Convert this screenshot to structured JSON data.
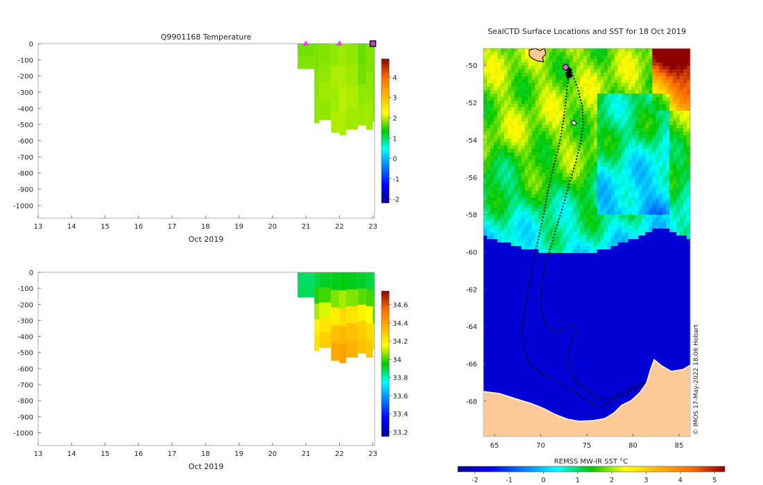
{
  "chart_data": [
    {
      "type": "heatmap",
      "title": "Q9901168  Temperature",
      "xlabel": "Oct 2019",
      "x_ticks": [
        13,
        14,
        15,
        16,
        17,
        18,
        19,
        20,
        21,
        22,
        23
      ],
      "xlim": [
        13,
        23.05
      ],
      "y_ticks": [
        0,
        -100,
        -200,
        -300,
        -400,
        -500,
        -600,
        -700,
        -800,
        -900,
        -1000
      ],
      "ylim": [
        -1080,
        0
      ],
      "colorbar": {
        "ticks": [
          -2,
          -1,
          0,
          1,
          2,
          3,
          4
        ],
        "range": [
          -2.2,
          4.9
        ]
      },
      "profile_markers": [
        21,
        22
      ],
      "latest_marker": 23,
      "columns": [
        {
          "x0": 20.75,
          "x1": 21.25,
          "depth": 155,
          "values": [
            1.75,
            1.8
          ]
        },
        {
          "x0": 21.25,
          "x1": 21.4,
          "depth": 490,
          "values": [
            1.78,
            1.82,
            1.85
          ]
        },
        {
          "x0": 21.4,
          "x1": 21.75,
          "depth": 470,
          "values": [
            1.8,
            1.85,
            1.9,
            1.85
          ]
        },
        {
          "x0": 21.75,
          "x1": 22.0,
          "depth": 550,
          "values": [
            1.85,
            1.95,
            1.9,
            1.95
          ]
        },
        {
          "x0": 22.0,
          "x1": 22.2,
          "depth": 565,
          "values": [
            1.9,
            1.95,
            2.0,
            1.95
          ]
        },
        {
          "x0": 22.2,
          "x1": 22.55,
          "depth": 530,
          "values": [
            1.85,
            1.9,
            1.95,
            1.9
          ]
        },
        {
          "x0": 22.55,
          "x1": 22.8,
          "depth": 505,
          "values": [
            1.7,
            1.75,
            1.85,
            1.9
          ]
        },
        {
          "x0": 22.8,
          "x1": 23.0,
          "depth": 530,
          "values": [
            1.8,
            1.85,
            1.9
          ]
        },
        {
          "x0": 23.0,
          "x1": 23.05,
          "depth": 480,
          "values": [
            1.75,
            1.8
          ]
        }
      ]
    },
    {
      "type": "heatmap",
      "title": "",
      "xlabel": "Oct 2019",
      "x_ticks": [
        13,
        14,
        15,
        16,
        17,
        18,
        19,
        20,
        21,
        22,
        23
      ],
      "xlim": [
        13,
        23.05
      ],
      "y_ticks": [
        0,
        -100,
        -200,
        -300,
        -400,
        -500,
        -600,
        -700,
        -800,
        -900,
        -1000
      ],
      "ylim": [
        -1080,
        0
      ],
      "colorbar": {
        "ticks": [
          33.2,
          33.4,
          33.6,
          33.8,
          34,
          34.2,
          34.4,
          34.6
        ],
        "range": [
          33.15,
          34.75
        ]
      },
      "columns": [
        {
          "x0": 20.75,
          "x1": 21.25,
          "depth": 155,
          "values": [
            33.87,
            33.88
          ]
        },
        {
          "x0": 21.25,
          "x1": 21.4,
          "depth": 490,
          "values": [
            33.9,
            33.98,
            34.08,
            34.18,
            34.22
          ]
        },
        {
          "x0": 21.4,
          "x1": 21.75,
          "depth": 470,
          "values": [
            33.92,
            34.0,
            34.12,
            34.22,
            34.28
          ]
        },
        {
          "x0": 21.75,
          "x1": 22.0,
          "depth": 550,
          "values": [
            33.93,
            34.05,
            34.2,
            34.32,
            34.38
          ]
        },
        {
          "x0": 22.0,
          "x1": 22.2,
          "depth": 565,
          "values": [
            33.94,
            34.08,
            34.25,
            34.35,
            34.4
          ]
        },
        {
          "x0": 22.2,
          "x1": 22.55,
          "depth": 530,
          "values": [
            33.93,
            34.05,
            34.22,
            34.32,
            34.36
          ]
        },
        {
          "x0": 22.55,
          "x1": 22.8,
          "depth": 505,
          "values": [
            33.92,
            34.02,
            34.18,
            34.28,
            34.32
          ]
        },
        {
          "x0": 22.8,
          "x1": 23.0,
          "depth": 530,
          "values": [
            33.9,
            34.0,
            34.15,
            34.25,
            34.3
          ]
        },
        {
          "x0": 23.0,
          "x1": 23.05,
          "depth": 480,
          "values": [
            33.9,
            34.0,
            34.12
          ]
        }
      ]
    },
    {
      "type": "heatmap",
      "title": "SealCTD Surface Locations and SST for 18 Oct 2019",
      "x_ticks": [
        65,
        70,
        75,
        80,
        85
      ],
      "xlim": [
        63.8,
        86.2
      ],
      "y_ticks": [
        -50,
        -52,
        -54,
        -56,
        -58,
        -60,
        -62,
        -64,
        -66,
        -68
      ],
      "ylim": [
        -69.9,
        -49.1
      ],
      "colorbar": {
        "label": "REMSS MW-IR SST °C",
        "ticks": [
          -2,
          -1,
          0,
          1,
          2,
          3,
          4,
          5
        ],
        "range": [
          -2.5,
          5.3
        ]
      },
      "credit": "© IMOS 17-May-2022 18:06 Hobart",
      "latest_position": [
        72.7,
        -50.1
      ],
      "track": [
        [
          72.7,
          -50.1
        ],
        [
          73.0,
          -50.6
        ],
        [
          72.8,
          -51.5
        ],
        [
          72.6,
          -52.5
        ],
        [
          72.3,
          -53.5
        ],
        [
          71.9,
          -54.5
        ],
        [
          71.3,
          -55.6
        ],
        [
          70.8,
          -56.7
        ],
        [
          70.4,
          -57.8
        ],
        [
          69.9,
          -59.0
        ],
        [
          69.3,
          -60.2
        ],
        [
          68.9,
          -61.4
        ],
        [
          68.5,
          -62.4
        ],
        [
          68.2,
          -63.4
        ],
        [
          68.0,
          -64.4
        ],
        [
          68.2,
          -65.3
        ],
        [
          68.8,
          -66.0
        ],
        [
          70.0,
          -66.5
        ],
        [
          71.5,
          -66.9
        ],
        [
          73.0,
          -67.3
        ],
        [
          74.3,
          -67.7
        ],
        [
          75.5,
          -68.1
        ],
        [
          76.5,
          -68.3
        ],
        [
          77.5,
          -68.1
        ],
        [
          78.7,
          -67.5
        ],
        [
          80.0,
          -67.2
        ],
        [
          81.0,
          -67.0
        ],
        [
          81.2,
          -67.1
        ],
        [
          80.0,
          -67.4
        ],
        [
          78.5,
          -67.7
        ],
        [
          77.2,
          -67.9
        ],
        [
          76.0,
          -67.8
        ],
        [
          75.0,
          -67.4
        ],
        [
          74.0,
          -67.0
        ],
        [
          73.3,
          -66.4
        ],
        [
          72.9,
          -65.8
        ],
        [
          73.1,
          -65.2
        ],
        [
          73.6,
          -64.6
        ],
        [
          73.9,
          -64.1
        ],
        [
          73.5,
          -63.9
        ],
        [
          72.5,
          -64.1
        ],
        [
          71.5,
          -64.3
        ],
        [
          70.5,
          -63.9
        ],
        [
          70.0,
          -63.0
        ],
        [
          70.1,
          -61.8
        ],
        [
          70.6,
          -60.5
        ],
        [
          71.3,
          -59.4
        ],
        [
          71.9,
          -58.4
        ],
        [
          72.5,
          -57.4
        ],
        [
          73.2,
          -56.2
        ],
        [
          73.8,
          -55.2
        ],
        [
          74.3,
          -54.2
        ],
        [
          74.6,
          -53.2
        ],
        [
          74.5,
          -52.2
        ],
        [
          74.0,
          -51.2
        ],
        [
          73.4,
          -50.4
        ],
        [
          72.7,
          -50.1
        ]
      ]
    }
  ]
}
